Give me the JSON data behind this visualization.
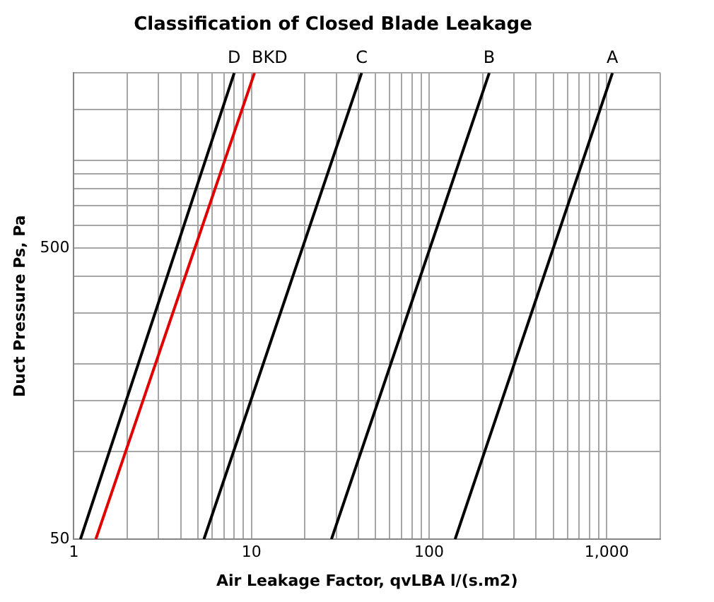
{
  "chart_data": {
    "type": "line",
    "title": "Classification of Closed Blade Leakage",
    "xlabel": "Air Leakage Factor, qvLBA l/(s.m2)",
    "ylabel": "Duct Pressure Ps, Pa",
    "log": "xy",
    "grid": true,
    "legend": false,
    "marker": "none",
    "line_style": "solid",
    "xlim": [
      1,
      2000
    ],
    "ylim": [
      50,
      2000
    ],
    "xticks": [
      1,
      {
        "value": 2,
        "label": null
      },
      {
        "value": 3,
        "label": null
      },
      {
        "value": 4,
        "label": null
      },
      {
        "value": 5,
        "label": null
      },
      {
        "value": 6,
        "label": null
      },
      {
        "value": 7,
        "label": null
      },
      {
        "value": 8,
        "label": null
      },
      {
        "value": 9,
        "label": null
      },
      10,
      {
        "value": 20,
        "label": null
      },
      {
        "value": 30,
        "label": null
      },
      {
        "value": 40,
        "label": null
      },
      {
        "value": 50,
        "label": null
      },
      {
        "value": 60,
        "label": null
      },
      {
        "value": 70,
        "label": null
      },
      {
        "value": 80,
        "label": null
      },
      {
        "value": 90,
        "label": null
      },
      100,
      {
        "value": 200,
        "label": null
      },
      {
        "value": 300,
        "label": null
      },
      {
        "value": 400,
        "label": null
      },
      {
        "value": 500,
        "label": null
      },
      {
        "value": 600,
        "label": null
      },
      {
        "value": 700,
        "label": null
      },
      {
        "value": 800,
        "label": null
      },
      {
        "value": 900,
        "label": null
      },
      {
        "value": 1000,
        "label": "1,000"
      },
      {
        "value": 2000,
        "label": null
      }
    ],
    "yticks": [
      50,
      {
        "value": 100,
        "label": null
      },
      {
        "value": 150,
        "label": null
      },
      {
        "value": 200,
        "label": null
      },
      {
        "value": 300,
        "label": null
      },
      {
        "value": 400,
        "label": null
      },
      500,
      {
        "value": 600,
        "label": null
      },
      {
        "value": 700,
        "label": null
      },
      {
        "value": 800,
        "label": null
      },
      {
        "value": 900,
        "label": null
      },
      {
        "value": 1000,
        "label": null
      },
      {
        "value": 1500,
        "label": null
      },
      {
        "value": 2000,
        "label": null
      }
    ],
    "series": [
      {
        "name": "D",
        "color": "#000000",
        "x": [
          1.09,
          8.0
        ],
        "values": [
          50,
          2000
        ]
      },
      {
        "name": "BKD",
        "color": "#e00000",
        "x": [
          1.33,
          10.4
        ],
        "values": [
          50,
          2000
        ]
      },
      {
        "name": "C",
        "color": "#000000",
        "x": [
          5.4,
          41.7
        ],
        "values": [
          50,
          2000
        ]
      },
      {
        "name": "B",
        "color": "#000000",
        "x": [
          28.2,
          218
        ],
        "values": [
          50,
          2000
        ]
      },
      {
        "name": "A",
        "color": "#000000",
        "x": [
          140,
          1076
        ],
        "values": [
          50,
          2000
        ]
      }
    ]
  }
}
